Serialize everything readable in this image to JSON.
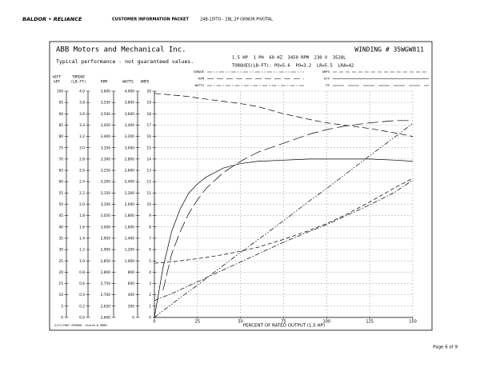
{
  "header": {
    "logo": "BALDOR • RELIANCE",
    "title": "CUSTOMER INFORMATION PACKET",
    "model": "24B-15ITO - 2BL 2P GRNOR PIVOTAL"
  },
  "footer": {
    "page": "Page 6 of 9"
  },
  "chart_data": {
    "type": "line",
    "title": "ABB Motors and Mechanical Inc.",
    "winding": "WINDING # 35WGW811",
    "note": "Typical performance - not guaranteed values.",
    "specs": "1.5 HP  1 PH  60 HZ  3450 RPM  230 V  3528L",
    "torques": "TORQUES(LB-FT): PO=5.6  PO=3.2  LR=5.5  LRA=42",
    "footnote": "2/27/2007 SCR006, record # 9880.",
    "xlabel": "PERCENT OF RATED OUTPUT (1.5 HP)",
    "y_title": [
      "%EFF",
      "%PF"
    ],
    "y2_title": [
      "TORQUE",
      "(LB-FT)"
    ],
    "y3_title": "RPM",
    "y4_title": "WATTS",
    "y5_title": "AMPS",
    "grid": true,
    "x": [
      0,
      5,
      10,
      15,
      20,
      25,
      30,
      40,
      50,
      60,
      75,
      90,
      100,
      110,
      125,
      140,
      150
    ],
    "xlim": [
      0,
      150
    ],
    "xticks": [
      0,
      25,
      50,
      75,
      100,
      125,
      150
    ],
    "ylim": [
      0,
      100
    ],
    "yticks": [
      0,
      5,
      10,
      15,
      20,
      25,
      30,
      35,
      40,
      45,
      50,
      55,
      60,
      65,
      70,
      75,
      80,
      85,
      90,
      95,
      100
    ],
    "y2lim": [
      0,
      4
    ],
    "y2ticks": [
      {
        "value": 0,
        "label": "0.0"
      },
      0.2,
      0.4,
      0.6,
      0.8,
      {
        "value": 1,
        "label": "1.0"
      },
      1.2,
      1.4,
      1.6,
      1.8,
      {
        "value": 2,
        "label": "2.0"
      },
      2.2,
      2.4,
      2.6,
      2.8,
      {
        "value": 3,
        "label": "3.0"
      },
      3.2,
      3.4,
      3.6,
      3.8,
      {
        "value": 4,
        "label": "4.0"
      }
    ],
    "y3lim": [
      2600,
      3600
    ],
    "y3ticks": [
      {
        "value": 2600,
        "label": "2,600"
      },
      {
        "value": 2650,
        "label": "2,650"
      },
      {
        "value": 2700,
        "label": "2,700"
      },
      {
        "value": 2750,
        "label": "2,750"
      },
      {
        "value": 2800,
        "label": "2,800"
      },
      {
        "value": 2850,
        "label": "2,850"
      },
      {
        "value": 2900,
        "label": "2,900"
      },
      {
        "value": 2950,
        "label": "2,950"
      },
      {
        "value": 3000,
        "label": "3,000"
      },
      {
        "value": 3050,
        "label": "3,050"
      },
      {
        "value": 3100,
        "label": "3,100"
      },
      {
        "value": 3150,
        "label": "3,150"
      },
      {
        "value": 3200,
        "label": "3,200"
      },
      {
        "value": 3250,
        "label": "3,250"
      },
      {
        "value": 3300,
        "label": "3,300"
      },
      {
        "value": 3350,
        "label": "3,350"
      },
      {
        "value": 3400,
        "label": "3,400"
      },
      {
        "value": 3450,
        "label": "3,450"
      },
      {
        "value": 3500,
        "label": "3,500"
      },
      {
        "value": 3550,
        "label": "3,550"
      },
      {
        "value": 3600,
        "label": "3,600"
      }
    ],
    "y4lim": [
      0,
      4000
    ],
    "y4ticks": [
      0,
      200,
      400,
      600,
      800,
      {
        "value": 1000,
        "label": "1,000"
      },
      {
        "value": 1200,
        "label": "1,200"
      },
      {
        "value": 1400,
        "label": "1,400"
      },
      {
        "value": 1600,
        "label": "1,600"
      },
      {
        "value": 1800,
        "label": "1,800"
      },
      {
        "value": 2000,
        "label": "2,000"
      },
      {
        "value": 2200,
        "label": "2,200"
      },
      {
        "value": 2400,
        "label": "2,400"
      },
      {
        "value": 2600,
        "label": "2,600"
      },
      {
        "value": 2800,
        "label": "2,800"
      },
      {
        "value": 3000,
        "label": "3,000"
      },
      {
        "value": 3200,
        "label": "3,200"
      },
      {
        "value": 3400,
        "label": "3,400"
      },
      {
        "value": 3600,
        "label": "3,600"
      },
      {
        "value": 3800,
        "label": "3,800"
      },
      {
        "value": 4000,
        "label": "4,000"
      }
    ],
    "y5lim": [
      0,
      20
    ],
    "y5ticks": [
      0,
      1,
      2,
      3,
      4,
      5,
      6,
      7,
      8,
      9,
      10,
      11,
      12,
      13,
      14,
      15,
      16,
      17,
      18,
      19,
      20
    ],
    "series": [
      {
        "name": "TORQUE",
        "axis": "y2",
        "color": "#000000",
        "dash": "6,2,1.5,2,1.5,2",
        "values": [
          0,
          0.12,
          0.23,
          0.35,
          0.46,
          0.57,
          0.69,
          0.92,
          1.15,
          1.37,
          1.71,
          2.06,
          2.28,
          2.51,
          2.86,
          3.2,
          3.43
        ]
      },
      {
        "name": "RPM",
        "axis": "y3",
        "color": "#000000",
        "dash": "8,4",
        "values": [
          3590,
          3587,
          3583,
          3580,
          3576,
          3570,
          3565,
          3555,
          3545,
          3532,
          3500,
          3475,
          3460,
          3450,
          3435,
          3415,
          3400
        ]
      },
      {
        "name": "WATTS",
        "axis": "y4",
        "color": "#000000",
        "dash": "6,2,1.5,2",
        "values": [
          300,
          360,
          420,
          490,
          560,
          630,
          700,
          840,
          980,
          1120,
          1330,
          1520,
          1640,
          1780,
          1990,
          2220,
          2430
        ]
      },
      {
        "name": "AMPS",
        "axis": "y5",
        "color": "#000000",
        "dash": "5,3",
        "values": [
          4.8,
          4.85,
          4.9,
          5,
          5.1,
          5.2,
          5.3,
          5.55,
          5.85,
          6.2,
          6.9,
          7.7,
          8.3,
          9,
          10.2,
          11.5,
          12.3
        ]
      },
      {
        "name": "EFF",
        "axis": "y",
        "color": "#000000",
        "dash": "none",
        "values": [
          0,
          22,
          38,
          48,
          55,
          59,
          62,
          66,
          68,
          69,
          69.5,
          70,
          70,
          70,
          70,
          69.5,
          69
        ]
      },
      {
        "name": "PF",
        "axis": "y",
        "color": "#000000",
        "dash": "14,5",
        "values": [
          null,
          12,
          28,
          38,
          46,
          52,
          57,
          64,
          69,
          73,
          77,
          81,
          83,
          84.5,
          86,
          87,
          87
        ]
      }
    ]
  }
}
